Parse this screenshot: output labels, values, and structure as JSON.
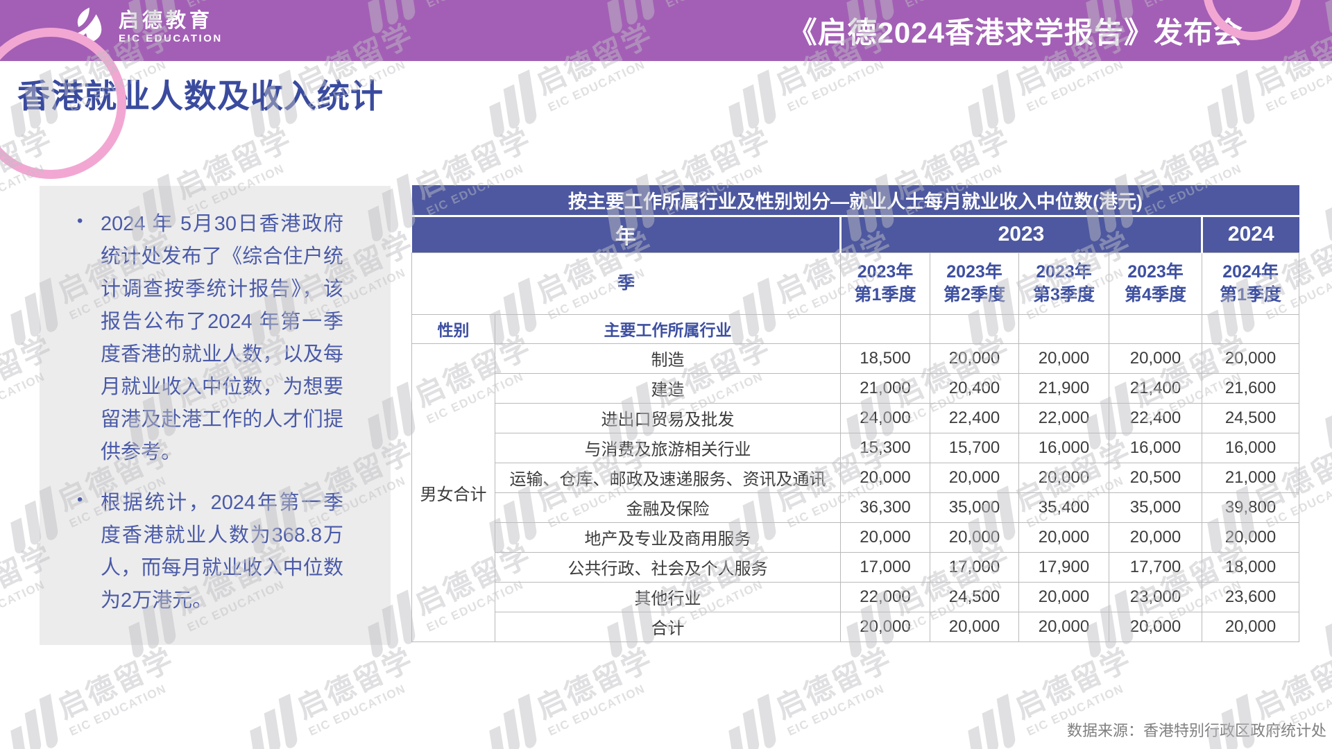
{
  "header": {
    "logo_cn": "启德教育",
    "logo_en": "EIC EDUCATION",
    "event_title": "《启德2024香港求学报告》发布会"
  },
  "page_title": "香港就业人数及收入统计",
  "summary_bullets": [
    "2024 年 5月30日香港政府统计处发布了《综合住户统计调查按季统计报告》，该报告公布了2024 年第一季度香港的就业人数，以及每月就业收入中位数，为想要留港及赴港工作的人才们提供参考。",
    "根据统计，2024年第一季度香港就业人数为368.8万人，而每月就业收入中位数为2万港元。"
  ],
  "table": {
    "title": "按主要工作所属行业及性别划分—就业人士每月就业收入中位数(港元)",
    "year_label": "年",
    "year_2023": "2023",
    "year_2024": "2024",
    "quarter_label": "季",
    "quarters": [
      "2023年\n第1季度",
      "2023年\n第2季度",
      "2023年\n第3季度",
      "2023年\n第4季度",
      "2024年\n第1季度"
    ],
    "gender_label": "性别",
    "industry_label": "主要工作所属行业",
    "gender_group_label": "男女合计",
    "rows": [
      {
        "industry": "制造",
        "values": [
          "18,500",
          "20,000",
          "20,000",
          "20,000",
          "20,000"
        ]
      },
      {
        "industry": "建造",
        "values": [
          "21,000",
          "20,400",
          "21,900",
          "21,400",
          "21,600"
        ]
      },
      {
        "industry": "进出口贸易及批发",
        "values": [
          "24,000",
          "22,400",
          "22,000",
          "22,400",
          "24,500"
        ]
      },
      {
        "industry": "与消费及旅游相关行业",
        "values": [
          "15,300",
          "15,700",
          "16,000",
          "16,000",
          "16,000"
        ]
      },
      {
        "industry": "运输、仓库、邮政及速递服务、资讯及通讯",
        "values": [
          "20,000",
          "20,000",
          "20,000",
          "20,500",
          "21,000"
        ]
      },
      {
        "industry": "金融及保险",
        "values": [
          "36,300",
          "35,000",
          "35,400",
          "35,000",
          "39,800"
        ]
      },
      {
        "industry": "地产及专业及商用服务",
        "values": [
          "20,000",
          "20,000",
          "20,000",
          "20,000",
          "20,000"
        ]
      },
      {
        "industry": "公共行政、社会及个人服务",
        "values": [
          "17,000",
          "17,000",
          "17,900",
          "17,700",
          "18,000"
        ]
      },
      {
        "industry": "其他行业",
        "values": [
          "22,000",
          "24,500",
          "20,000",
          "23,000",
          "23,600"
        ]
      },
      {
        "industry": "合计",
        "values": [
          "20,000",
          "20,000",
          "20,000",
          "20,000",
          "20,000"
        ]
      }
    ]
  },
  "source_note": "数据来源：香港特别行政区政府统计处",
  "watermark": {
    "text_cn": "启德留学",
    "text_en": "EIC EDUCATION"
  },
  "colors": {
    "header_purple": "#a35fb5",
    "arc_pink": "#f2a7d3",
    "table_header_blue": "#4d58a0",
    "page_title_blue": "#3a4b9e",
    "summary_text_blue": "#4a5aa8",
    "summary_box_gray": "#ececec",
    "data_text": "#3c3c3c",
    "border_gray": "#b9b9b9",
    "source_gray": "#7f7f7f"
  }
}
